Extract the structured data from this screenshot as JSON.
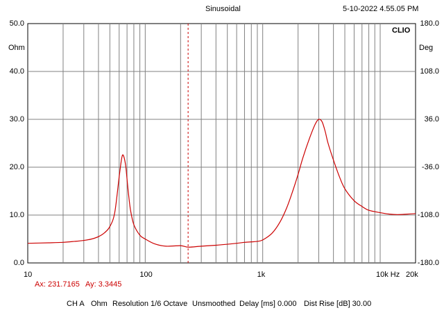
{
  "header": {
    "mode": "Sinusoidal",
    "timestamp": "5-10-2022 4.55.05 PM",
    "brand": "CLIO"
  },
  "cursor": {
    "ax_label": "Ax: 231.7165",
    "ay_label": "Ay: 3.3445"
  },
  "footer": {
    "channel": "CH A",
    "unit": "Ohm",
    "resolution": "Resolution 1/6 Octave",
    "smoothing": "Unsmoothed",
    "delay": "Delay [ms] 0.000",
    "dist_rise": "Dist Rise [dB] 30.00"
  },
  "colors": {
    "trace": "#cc0000",
    "grid": "#808080",
    "cursor": "#cc0000",
    "background": "#ffffff"
  },
  "chart_data": {
    "type": "line",
    "title": "Sinusoidal",
    "xlabel": "Hz",
    "ylabel_left": "Ohm",
    "ylabel_right": "Deg",
    "x_scale": "log",
    "xlim": [
      10,
      20000
    ],
    "ylim_left": [
      0,
      50
    ],
    "ylim_right": [
      -180,
      180
    ],
    "grid": true,
    "x_tick_labels": [
      "10",
      "100",
      "1k",
      "10k",
      "20k"
    ],
    "y_left_tick_labels": [
      "0.0",
      "10.0",
      "20.0",
      "30.0",
      "40.0",
      "50.0"
    ],
    "y_right_tick_labels": [
      "-180.0",
      "-108.0",
      "-36.0",
      "36.0",
      "108.0",
      "180.0"
    ],
    "cursor_x": 231.7165,
    "series": [
      {
        "x": [
          10,
          15,
          20,
          25,
          30,
          35,
          40,
          45,
          50,
          55,
          60,
          63,
          65,
          68,
          70,
          72,
          75,
          80,
          90,
          100,
          120,
          150,
          200,
          232,
          300,
          400,
          500,
          600,
          700,
          800,
          900,
          1000,
          1200,
          1400,
          1600,
          1800,
          2000,
          2200,
          2500,
          2800,
          3000,
          3200,
          3400,
          3600,
          4000,
          4500,
          5000,
          6000,
          7000,
          8000,
          10000,
          12000,
          14000,
          17000,
          20000
        ],
        "values": [
          4.1,
          4.2,
          4.3,
          4.5,
          4.7,
          5.0,
          5.5,
          6.3,
          7.6,
          10.5,
          18.0,
          21.8,
          22.5,
          20.5,
          17.5,
          14.5,
          11.0,
          8.0,
          5.8,
          5.0,
          4.0,
          3.5,
          3.6,
          3.3,
          3.5,
          3.7,
          3.9,
          4.1,
          4.3,
          4.4,
          4.5,
          4.8,
          6.2,
          8.5,
          11.5,
          15.0,
          18.5,
          22.0,
          26.0,
          29.0,
          30.0,
          29.5,
          27.5,
          25.0,
          21.5,
          18.0,
          15.5,
          13.0,
          11.8,
          11.0,
          10.5,
          10.2,
          10.1,
          10.2,
          10.3
        ]
      }
    ]
  }
}
